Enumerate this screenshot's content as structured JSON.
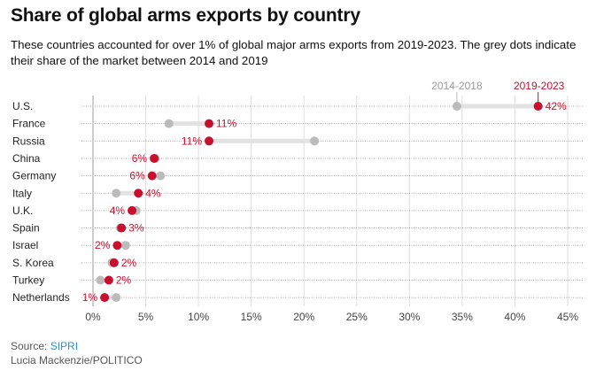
{
  "title": "Share of global arms exports by country",
  "subtitle": "These countries accounted for over 1% of global major arms exports from 2019-2023. The grey dots indicate their share of the market between 2014 and 2019",
  "source_label": "Source:",
  "source_name": "SIPRI",
  "credit": "Lucia Mackenzie/POLITICO",
  "colors": {
    "current": "#c8102e",
    "previous": "#bbbbbb",
    "label": "#c8102e"
  },
  "chart_data": {
    "type": "dumbbell",
    "title": "Share of global arms exports by country",
    "legend": {
      "previous": "2014-2018",
      "current": "2019-2023",
      "placement": "top-right"
    },
    "xlim": [
      0,
      45
    ],
    "xticks": [
      0,
      5,
      10,
      15,
      20,
      25,
      30,
      35,
      40,
      45
    ],
    "xtick_labels": [
      "0%",
      "5%",
      "10%",
      "15%",
      "20%",
      "25%",
      "30%",
      "35%",
      "40%",
      "45%"
    ],
    "grid": true,
    "rows": [
      {
        "country": "U.S.",
        "previous": 34.5,
        "current": 42.2,
        "label": "42%"
      },
      {
        "country": "France",
        "previous": 7.2,
        "current": 11.0,
        "label": "11%"
      },
      {
        "country": "Russia",
        "previous": 21.0,
        "current": 11.0,
        "label": "11%"
      },
      {
        "country": "China",
        "previous": 5.9,
        "current": 5.8,
        "label": "6%"
      },
      {
        "country": "Germany",
        "previous": 6.4,
        "current": 5.6,
        "label": "6%"
      },
      {
        "country": "Italy",
        "previous": 2.2,
        "current": 4.3,
        "label": "4%"
      },
      {
        "country": "U.K.",
        "previous": 4.1,
        "current": 3.7,
        "label": "4%"
      },
      {
        "country": "Spain",
        "previous": 2.6,
        "current": 2.7,
        "label": "3%"
      },
      {
        "country": "Israel",
        "previous": 3.1,
        "current": 2.3,
        "label": "2%"
      },
      {
        "country": "S. Korea",
        "previous": 1.8,
        "current": 2.0,
        "label": "2%"
      },
      {
        "country": "Turkey",
        "previous": 0.7,
        "current": 1.5,
        "label": "2%"
      },
      {
        "country": "Netherlands",
        "previous": 2.2,
        "current": 1.1,
        "label": "1%"
      }
    ]
  }
}
